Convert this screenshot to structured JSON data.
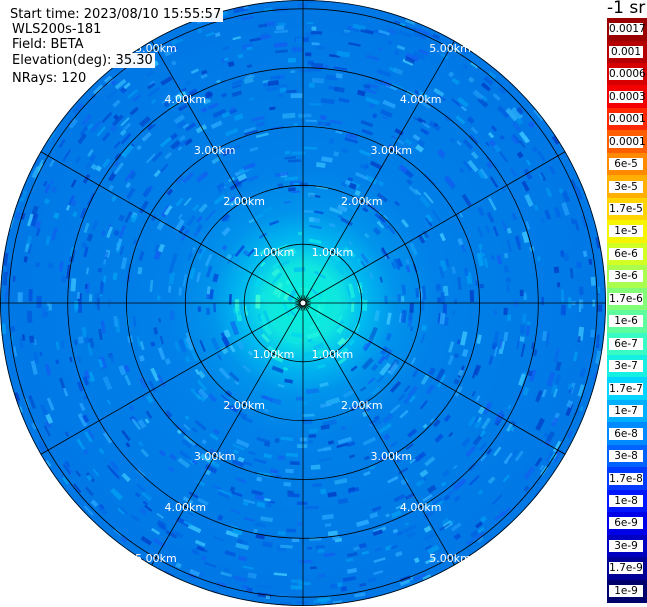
{
  "info": {
    "start_time": "Start time: 2023/08/10 15:55:57",
    "instrument": "WLS200s-181",
    "field": "Field: BETA",
    "elevation": "Elevation(deg): 35.30",
    "nrays": "NRays: 120"
  },
  "colorbar": {
    "title": "-1 sr",
    "labels": [
      "0.0017",
      "0.001",
      "0.0006",
      "0.0003",
      "0.00017",
      "0.0001",
      "6e-5",
      "3e-5",
      "1.7e-5",
      "1e-5",
      "6e-6",
      "3e-6",
      "1.7e-6",
      "1e-6",
      "6e-7",
      "3e-7",
      "1.7e-7",
      "1e-7",
      "6e-8",
      "3e-8",
      "1.7e-8",
      "1e-8",
      "6e-9",
      "3e-9",
      "1.7e-9",
      "1e-9"
    ],
    "colors": [
      "#9a0000",
      "#b40000",
      "#d60000",
      "#f40000",
      "#ff2800",
      "#ff5e00",
      "#ff8a00",
      "#ffb000",
      "#ffd400",
      "#f6f400",
      "#d2ff24",
      "#aaff4e",
      "#82ff76",
      "#5efe9e",
      "#38fcc4",
      "#16f0e2",
      "#00d4ff",
      "#00b0ff",
      "#008aff",
      "#0062ff",
      "#003aff",
      "#0016ff",
      "#0000e8",
      "#0000c0",
      "#000096",
      "#00006c"
    ]
  },
  "chart_data": {
    "type": "polar_ppi",
    "field": "BETA",
    "instrument": "WLS200s-181",
    "start_time": "2023/08/10 15:55:57",
    "elevation_deg": 35.3,
    "nrays": 120,
    "units": "-1 sr",
    "range_rings_km": [
      1.0,
      2.0,
      3.0,
      4.0,
      5.0
    ],
    "range_labels": [
      "1.00km",
      "2.00km",
      "3.00km",
      "4.00km",
      "5.00km"
    ],
    "max_range_km": 5.15,
    "spoke_angles_deg": [
      0,
      30,
      60,
      90,
      120,
      150,
      180,
      210,
      240,
      270,
      300,
      330
    ],
    "radial_profile": [
      {
        "range_km": 0.0,
        "value": "1.7e-7"
      },
      {
        "range_km": 0.6,
        "value": "1.7e-7"
      },
      {
        "range_km": 1.0,
        "value": "6e-8"
      },
      {
        "range_km": 1.5,
        "value": "1.7e-8"
      },
      {
        "range_km": 2.0,
        "value": "1e-8"
      },
      {
        "range_km": 3.0,
        "value": "1e-8"
      },
      {
        "range_km": 5.15,
        "value": "1e-8"
      }
    ]
  }
}
